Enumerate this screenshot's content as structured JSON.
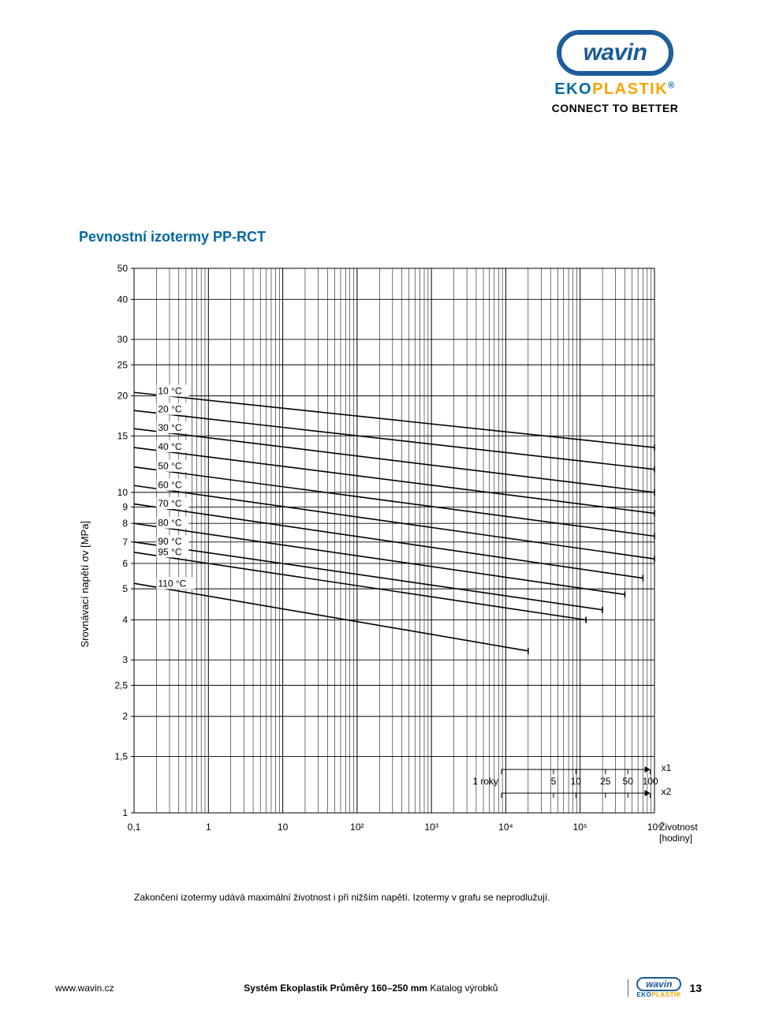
{
  "brand": {
    "name": "wavin",
    "brand_color": "#1a5b9a",
    "sub_brand_prefix": "EKO",
    "sub_brand_suffix": "PLASTIK",
    "sub_prefix_color": "#0068a5",
    "sub_suffix_color": "#f7a400",
    "tagline": "CONNECT TO BETTER"
  },
  "chart": {
    "title": "Pevnostní izotermy PP-RCT",
    "type": "log-log-line",
    "y_axis": {
      "label": "Srovnávací napětí σv [MPa]",
      "label_fontsize": 13,
      "scale": "log",
      "min": 1,
      "max": 50,
      "ticks": [
        50,
        40,
        30,
        25,
        20,
        15,
        10,
        9,
        8,
        7,
        6,
        5,
        4,
        3,
        2.5,
        2,
        1.5,
        1
      ],
      "tick_labels": [
        "50",
        "40",
        "30",
        "25",
        "20",
        "15",
        "10",
        "9",
        "8",
        "7",
        "6",
        "5",
        "4",
        "3",
        "2,5",
        "2",
        "1,5",
        "1"
      ],
      "tick_fontsize": 12
    },
    "x_axis": {
      "scale": "log",
      "min": 0.1,
      "max": 1000000,
      "major_ticks": [
        0.1,
        1,
        10,
        100,
        1000,
        10000,
        100000,
        1000000
      ],
      "major_labels": [
        "0,1",
        "1",
        "10",
        "10²",
        "10³",
        "10⁴",
        "10⁵",
        "10⁶"
      ],
      "right_label": "Životnost\n[hodiny]",
      "tick_fontsize": 12,
      "secondary_scale": {
        "label_prefix": "1  roky",
        "ticks": [
          1,
          5,
          10,
          25,
          50,
          100
        ],
        "ruler_labels_x1": "x1",
        "ruler_labels_x2": "x2"
      }
    },
    "grid_color": "#000000",
    "grid_stroke": 1,
    "line_color": "#000000",
    "line_stroke": 1.6,
    "background_color": "#ffffff",
    "isotherms": [
      {
        "label": "10 °C",
        "points": [
          [
            0.1,
            20.5
          ],
          [
            1000000,
            13.8
          ]
        ]
      },
      {
        "label": "20 °C",
        "points": [
          [
            0.1,
            18.0
          ],
          [
            1000000,
            11.8
          ]
        ]
      },
      {
        "label": "30 °C",
        "points": [
          [
            0.1,
            15.8
          ],
          [
            1000000,
            10.0
          ]
        ]
      },
      {
        "label": "40 °C",
        "points": [
          [
            0.1,
            13.8
          ],
          [
            1000000,
            8.6
          ]
        ]
      },
      {
        "label": "50 °C",
        "points": [
          [
            0.1,
            12.0
          ],
          [
            1000000,
            7.3
          ]
        ]
      },
      {
        "label": "60 °C",
        "points": [
          [
            0.1,
            10.5
          ],
          [
            1000000,
            6.2
          ]
        ]
      },
      {
        "label": "70 °C",
        "points": [
          [
            0.1,
            9.2
          ],
          [
            700000,
            5.4
          ]
        ]
      },
      {
        "label": "80 °C",
        "points": [
          [
            0.1,
            8.0
          ],
          [
            400000,
            4.8
          ]
        ]
      },
      {
        "label": "90 °C",
        "points": [
          [
            0.1,
            7.0
          ],
          [
            200000,
            4.3
          ]
        ]
      },
      {
        "label": "95 °C",
        "points": [
          [
            0.1,
            6.5
          ],
          [
            120000,
            4.0
          ]
        ]
      },
      {
        "label": "110 °C",
        "points": [
          [
            0.1,
            5.2
          ],
          [
            20000,
            3.2
          ]
        ]
      }
    ],
    "label_x_pos": 0.21,
    "label_fontsize": 12,
    "footnote": "Zakončení izotermy udává maximální životnost i při nižším napětí. Izotermy v grafu se neprodlužují."
  },
  "footer": {
    "site": "www.wavin.cz",
    "doc_title_bold": "Systém Ekoplastik Průměry 160–250 mm",
    "doc_title_light": " Katalog výrobků",
    "page_number": "13"
  }
}
